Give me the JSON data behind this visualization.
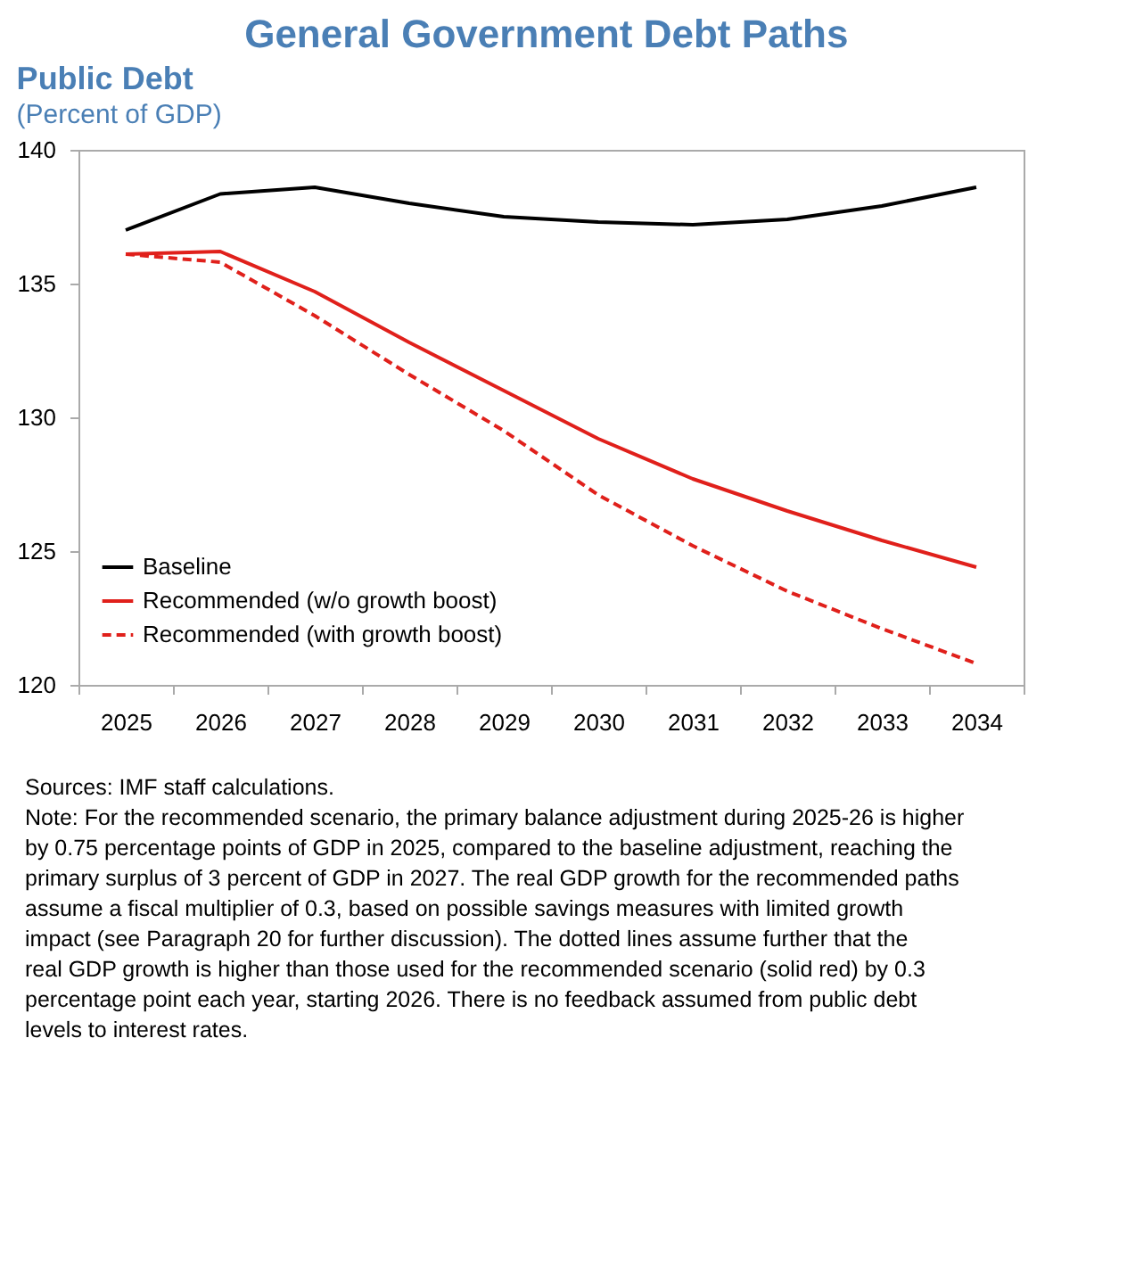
{
  "chart_data": {
    "type": "line",
    "title": "General Government Debt Paths",
    "subtitle": [
      "Public Debt",
      "(Percent of GDP)"
    ],
    "categories": [
      "2025",
      "2026",
      "2027",
      "2028",
      "2029",
      "2030",
      "2031",
      "2032",
      "2033",
      "2034"
    ],
    "series": [
      {
        "name": "Baseline",
        "color": "#000000",
        "line_style": "solid",
        "values": [
          137.0,
          138.35,
          138.6,
          138.0,
          137.5,
          137.3,
          137.2,
          137.4,
          137.9,
          138.6
        ]
      },
      {
        "name": "Recommended (w/o growth boost)",
        "color": "#e0201b",
        "line_style": "solid",
        "values": [
          136.1,
          136.2,
          134.7,
          132.8,
          131.0,
          129.2,
          127.7,
          126.5,
          125.4,
          124.4
        ]
      },
      {
        "name": "Recommended (with growth boost)",
        "color": "#e0201b",
        "line_style": "dashed",
        "values": [
          136.1,
          135.8,
          133.8,
          131.6,
          129.5,
          127.1,
          125.2,
          123.5,
          122.1,
          120.8
        ]
      }
    ],
    "ylim": [
      120,
      140
    ],
    "yticks": [
      120,
      125,
      130,
      135,
      140
    ],
    "grid": false,
    "legend": "bottom left",
    "marker": "none",
    "annotations": [
      "Sources: IMF staff calculations.",
      "Note: For the recommended scenario, the primary balance adjustment during 2025-26 is higher by 0.75 percentage points of GDP in 2025, compared to the baseline adjustment, reaching the primary surplus of 3 percent of GDP in 2027. The real GDP growth for the recommended paths assume a fiscal multiplier of 0.3, based on possible savings measures with limited growth impact (see Paragraph 20 for further discussion). The dotted lines assume further that the real GDP growth is higher than those used for the recommended scenario (solid red) by 0.3 percentage point each year, starting 2026. There is no feedback assumed from public debt levels to interest rates."
    ]
  }
}
